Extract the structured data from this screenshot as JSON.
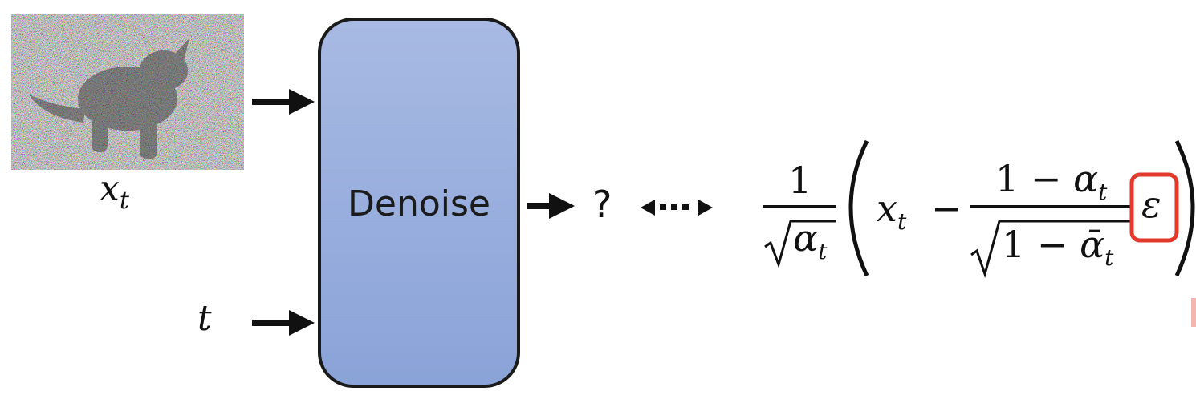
{
  "inputs": {
    "image_label": "x",
    "image_label_sub": "t",
    "time_label": "t"
  },
  "model": {
    "label": "Denoise"
  },
  "output": {
    "symbol": "?"
  },
  "equation": {
    "outer_num": "1",
    "outer_den_alpha": "α",
    "outer_den_sub": "t",
    "x": "x",
    "x_sub": "t",
    "minus": "−",
    "inner_num_one": "1",
    "inner_num_minus": "−",
    "inner_num_alpha": "α",
    "inner_num_sub": "t",
    "inner_den_one": "1",
    "inner_den_minus": "−",
    "inner_den_alpha": "ᾱ",
    "inner_den_sub": "t",
    "epsilon": "ε"
  },
  "colors": {
    "box_top": "#a8bae3",
    "box_bottom": "#8aa3d8",
    "box_border": "#1a1a1a",
    "highlight": "#e23a2a",
    "arrow": "#111111"
  }
}
